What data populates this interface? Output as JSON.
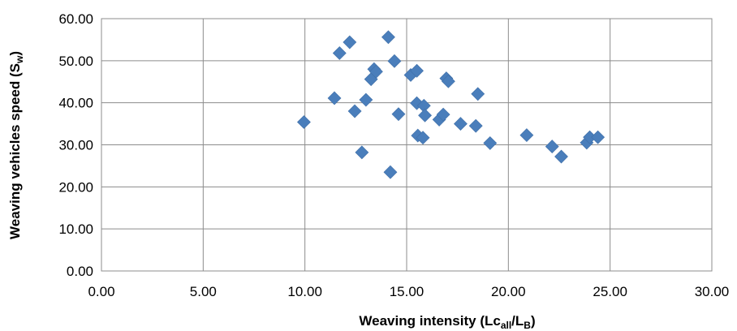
{
  "chart_data": {
    "type": "scatter",
    "title": "",
    "xlabel": {
      "main": "Weaving intensity (Lc",
      "sub1": "all",
      "mid": "/L",
      "sub2": "B",
      "end": ")"
    },
    "ylabel": {
      "main": "Weaving vehicles speed (S",
      "sub": "w",
      "end": ")"
    },
    "xlim": [
      0,
      30
    ],
    "ylim": [
      0,
      60
    ],
    "x_ticks": [
      "0.00",
      "5.00",
      "10.00",
      "15.00",
      "20.00",
      "25.00",
      "30.00"
    ],
    "y_ticks": [
      "0.00",
      "10.00",
      "20.00",
      "30.00",
      "40.00",
      "50.00",
      "60.00"
    ],
    "grid": true,
    "legend": "none",
    "marker": "diamond",
    "color": "#4a7ebb",
    "points": [
      [
        9.95,
        35.4
      ],
      [
        11.45,
        41.1
      ],
      [
        11.7,
        51.8
      ],
      [
        12.2,
        54.4
      ],
      [
        12.45,
        38.0
      ],
      [
        12.8,
        28.2
      ],
      [
        13.0,
        40.7
      ],
      [
        13.25,
        45.6
      ],
      [
        13.4,
        48.0
      ],
      [
        13.5,
        47.4
      ],
      [
        14.1,
        55.6
      ],
      [
        14.2,
        23.5
      ],
      [
        14.4,
        49.9
      ],
      [
        14.6,
        37.3
      ],
      [
        15.2,
        46.6
      ],
      [
        15.5,
        47.6
      ],
      [
        15.5,
        39.9
      ],
      [
        15.55,
        32.2
      ],
      [
        15.8,
        31.7
      ],
      [
        15.85,
        39.3
      ],
      [
        15.9,
        37.0
      ],
      [
        16.6,
        36.0
      ],
      [
        16.8,
        37.2
      ],
      [
        16.95,
        45.8
      ],
      [
        17.05,
        45.1
      ],
      [
        17.65,
        35.0
      ],
      [
        18.4,
        34.5
      ],
      [
        18.5,
        42.1
      ],
      [
        19.1,
        30.4
      ],
      [
        20.9,
        32.3
      ],
      [
        22.15,
        29.6
      ],
      [
        22.6,
        27.2
      ],
      [
        23.85,
        30.5
      ],
      [
        24.0,
        31.8
      ],
      [
        24.4,
        31.8
      ]
    ]
  }
}
